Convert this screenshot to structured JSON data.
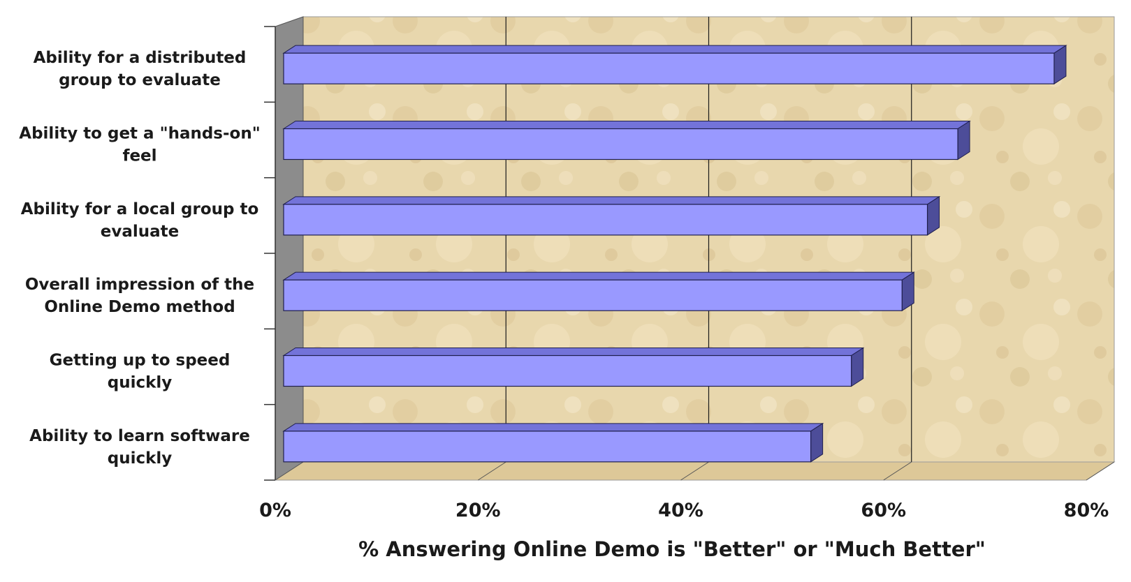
{
  "chart_data": {
    "type": "bar",
    "orientation": "horizontal",
    "style": "3d",
    "categories": [
      "Ability for a distributed group to evaluate",
      "Ability to get a \"hands-on\" feel",
      "Ability for a local group to evaluate",
      "Overall impression of the Online Demo method",
      "Getting up to speed quickly",
      "Ability to learn software quickly"
    ],
    "category_lines": [
      [
        "Ability for a distributed",
        "group to evaluate"
      ],
      [
        "Ability to get a \"hands-on\"",
        "feel"
      ],
      [
        "Ability for a local group to",
        "evaluate"
      ],
      [
        "Overall impression of the",
        "Online Demo method"
      ],
      [
        "Getting up to speed",
        "quickly"
      ],
      [
        "Ability to learn software",
        "quickly"
      ]
    ],
    "values": [
      76,
      66.5,
      63.5,
      61,
      56,
      52
    ],
    "x_ticks": [
      "0%",
      "20%",
      "40%",
      "60%",
      "80%"
    ],
    "xlim": [
      0,
      80
    ],
    "xlabel": "% Answering Online Demo is \"Better\" or \"Much Better\"",
    "ylabel": "",
    "title": "",
    "grid": true,
    "legend": "none",
    "colors": {
      "bar_front": "#9999ff",
      "bar_top": "#7373d9",
      "bar_side": "#4d4d99",
      "bar_outline": "#1f1f4d",
      "wall_back": "#e6d4a8",
      "wall_side": "#8c8c8c",
      "floor": "#ddc898",
      "gridline": "#1a1a1a"
    }
  }
}
